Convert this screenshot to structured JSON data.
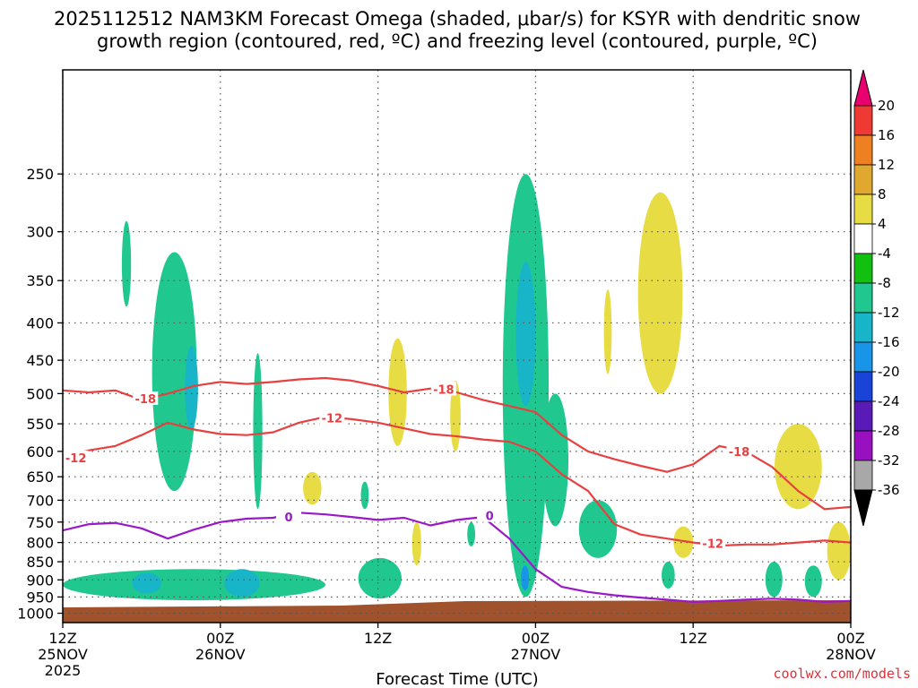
{
  "chart_data": {
    "type": "heatmap",
    "title_line1": "2025112512 NAM3KM Forecast Omega (shaded, μbar/s) for KSYR with dendritic snow",
    "title_line2": "growth region (contoured, red, ºC) and freezing level (contoured, purple, ºC)",
    "xlabel": "Forecast Time (UTC)",
    "credit": "coolwx.com/models",
    "x_range_hours": [
      0,
      60
    ],
    "y_range_hpa": [
      180,
      1030
    ],
    "y_scale": "log-pressure",
    "grid": "dotted",
    "y_ticks": [
      250,
      300,
      350,
      400,
      450,
      500,
      550,
      600,
      650,
      700,
      750,
      800,
      850,
      900,
      950,
      1000
    ],
    "x_ticks": [
      {
        "hour": 0,
        "l1": "12Z",
        "l2": "25NOV",
        "l3": "2025"
      },
      {
        "hour": 12,
        "l1": "00Z",
        "l2": "26NOV",
        "l3": ""
      },
      {
        "hour": 24,
        "l1": "12Z",
        "l2": "",
        "l3": ""
      },
      {
        "hour": 36,
        "l1": "00Z",
        "l2": "27NOV",
        "l3": ""
      },
      {
        "hour": 48,
        "l1": "12Z",
        "l2": "",
        "l3": ""
      },
      {
        "hour": 60,
        "l1": "00Z",
        "l2": "28NOV",
        "l3": ""
      }
    ],
    "colorbar": {
      "labels": [
        "20",
        "16",
        "12",
        "8",
        "4",
        "-4",
        "-8",
        "-12",
        "-16",
        "-20",
        "-24",
        "-28",
        "-32",
        "-36"
      ],
      "colors": [
        "#e8006e",
        "#ee3a33",
        "#ef8021",
        "#e0a82e",
        "#e8dc44",
        "#ffffff",
        "#12c012",
        "#20c890",
        "#18b4c8",
        "#1894e8",
        "#1a44d8",
        "#5a1ab8",
        "#9810c0",
        "#a8a8a8",
        "#000000"
      ]
    },
    "terrain_color": "#a0522d",
    "shading": [
      {
        "level": -8,
        "t0": 4.5,
        "t1": 5.2,
        "p0": 290,
        "p1": 380
      },
      {
        "level": -8,
        "t0": 6.8,
        "t1": 10.2,
        "p0": 320,
        "p1": 680
      },
      {
        "level": -8,
        "t0": 0,
        "t1": 20,
        "p0": 870,
        "p1": 960
      },
      {
        "level": -12,
        "t0": 9.3,
        "t1": 10.3,
        "p0": 430,
        "p1": 560
      },
      {
        "level": -12,
        "t0": 12.3,
        "t1": 15,
        "p0": 870,
        "p1": 950
      },
      {
        "level": -12,
        "t0": 5.3,
        "t1": 7.5,
        "p0": 880,
        "p1": 940
      },
      {
        "level": -8,
        "t0": 14.5,
        "t1": 15.2,
        "p0": 440,
        "p1": 720
      },
      {
        "level": -8,
        "t0": 22.5,
        "t1": 25.8,
        "p0": 840,
        "p1": 955
      },
      {
        "level": -8,
        "t0": 22.7,
        "t1": 23.3,
        "p0": 660,
        "p1": 720
      },
      {
        "level": 4,
        "t0": 24.8,
        "t1": 26.2,
        "p0": 420,
        "p1": 590
      },
      {
        "level": 4,
        "t0": 18.3,
        "t1": 19.7,
        "p0": 640,
        "p1": 710
      },
      {
        "level": -8,
        "t0": 33.5,
        "t1": 37,
        "p0": 250,
        "p1": 950
      },
      {
        "level": -12,
        "t0": 34.5,
        "t1": 36,
        "p0": 330,
        "p1": 520
      },
      {
        "level": -16,
        "t0": 34.9,
        "t1": 35.5,
        "p0": 860,
        "p1": 930
      },
      {
        "level": -8,
        "t0": 36.5,
        "t1": 38.5,
        "p0": 500,
        "p1": 760
      },
      {
        "level": -8,
        "t0": 39.3,
        "t1": 42.2,
        "p0": 700,
        "p1": 840
      },
      {
        "level": 4,
        "t0": 43.8,
        "t1": 47.2,
        "p0": 265,
        "p1": 500
      },
      {
        "level": 4,
        "t0": 41.2,
        "t1": 41.8,
        "p0": 360,
        "p1": 470
      },
      {
        "level": 4,
        "t0": 54.2,
        "t1": 57.8,
        "p0": 550,
        "p1": 720
      },
      {
        "level": 4,
        "t0": 58.2,
        "t1": 60,
        "p0": 750,
        "p1": 900
      },
      {
        "level": -8,
        "t0": 53.5,
        "t1": 54.8,
        "p0": 850,
        "p1": 950
      },
      {
        "level": -8,
        "t0": 56.5,
        "t1": 57.8,
        "p0": 860,
        "p1": 950
      },
      {
        "level": -8,
        "t0": 45.6,
        "t1": 46.6,
        "p0": 850,
        "p1": 925
      },
      {
        "level": 4,
        "t0": 29.5,
        "t1": 30.3,
        "p0": 480,
        "p1": 600
      },
      {
        "level": -8,
        "t0": 30.8,
        "t1": 31.4,
        "p0": 750,
        "p1": 810
      },
      {
        "level": 4,
        "t0": 26.6,
        "t1": 27.3,
        "p0": 750,
        "p1": 860
      },
      {
        "level": 4,
        "t0": 46.5,
        "t1": 48,
        "p0": 760,
        "p1": 840
      }
    ],
    "contours": [
      {
        "name": "dgz_minus18",
        "color": "#e84040",
        "label": "-18",
        "t": [
          0,
          2,
          4,
          6,
          8,
          10,
          12,
          14,
          16,
          18,
          20,
          22,
          24,
          26,
          28,
          30,
          32,
          34,
          36,
          38,
          40,
          42,
          44,
          46,
          48,
          50,
          52,
          54,
          56,
          58,
          60
        ],
        "p": [
          495,
          498,
          495,
          510,
          500,
          488,
          482,
          485,
          482,
          478,
          476,
          480,
          488,
          498,
          492,
          498,
          510,
          520,
          530,
          570,
          600,
          615,
          628,
          640,
          625,
          590,
          600,
          630,
          680,
          720,
          715
        ],
        "label_t": 6.3,
        "label_p": 508,
        "label2_t": 29,
        "label2_p": 493,
        "label3_t": 51.5,
        "label3_p": 600
      },
      {
        "name": "dgz_minus12",
        "color": "#e84040",
        "label": "-12",
        "t": [
          0,
          2,
          4,
          6,
          8,
          10,
          12,
          14,
          16,
          18,
          20,
          22,
          24,
          26,
          28,
          30,
          32,
          34,
          36,
          38,
          40,
          42,
          44,
          46,
          48,
          50,
          52,
          54,
          56,
          58,
          60
        ],
        "p": [
          610,
          598,
          590,
          570,
          548,
          560,
          568,
          570,
          565,
          548,
          538,
          542,
          548,
          558,
          568,
          572,
          578,
          582,
          600,
          645,
          680,
          755,
          780,
          790,
          800,
          808,
          805,
          805,
          800,
          795,
          800
        ],
        "label_t": 1.0,
        "label_p": 612,
        "label2_t": 20.5,
        "label2_p": 540,
        "label3_t": 49.5,
        "label3_p": 802
      },
      {
        "name": "freezing_level_0",
        "color": "#9a18c8",
        "label": "0",
        "t": [
          0,
          2,
          4,
          6,
          8,
          10,
          12,
          14,
          16,
          18,
          20,
          22,
          24,
          26,
          28,
          30,
          32,
          34,
          36,
          38,
          40,
          42,
          44,
          46,
          48,
          50,
          52,
          54,
          56,
          58,
          60
        ],
        "p": [
          770,
          755,
          752,
          765,
          790,
          768,
          750,
          742,
          740,
          728,
          732,
          738,
          745,
          740,
          758,
          745,
          738,
          790,
          870,
          920,
          935,
          945,
          952,
          958,
          965,
          962,
          958,
          955,
          958,
          965,
          962
        ],
        "label_t": 17.2,
        "label_p": 738,
        "label2_t": 32.5,
        "label2_p": 735,
        "label3_t": 0,
        "label3_p": 0
      }
    ]
  }
}
